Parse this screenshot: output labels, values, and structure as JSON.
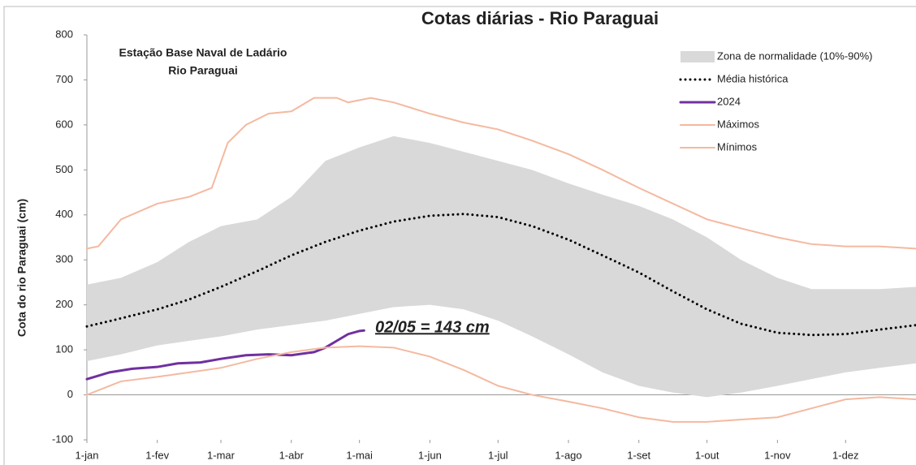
{
  "chart_data": {
    "type": "line",
    "title": "Cotas diárias - Rio Paraguai",
    "y_label": "Cota do rio Paraguai (cm)",
    "annotations": [
      "Estação Base Naval de Ladário",
      "Rio Paraguai",
      "02/05 = 143 cm"
    ],
    "xlim": [
      0,
      365
    ],
    "ylim": [
      -100,
      800
    ],
    "yticks": [
      -100,
      0,
      100,
      200,
      300,
      400,
      500,
      600,
      700,
      800
    ],
    "xticks": [
      {
        "value": 0,
        "label": "1-jan"
      },
      {
        "value": 31,
        "label": "1-fev"
      },
      {
        "value": 59,
        "label": "1-mar"
      },
      {
        "value": 90,
        "label": "1-abr"
      },
      {
        "value": 120,
        "label": "1-mai"
      },
      {
        "value": 151,
        "label": "1-jun"
      },
      {
        "value": 181,
        "label": "1-jul"
      },
      {
        "value": 212,
        "label": "1-ago"
      },
      {
        "value": 243,
        "label": "1-set"
      },
      {
        "value": 273,
        "label": "1-out"
      },
      {
        "value": 304,
        "label": "1-nov"
      },
      {
        "value": 334,
        "label": "1-dez"
      }
    ],
    "legend": "upper right",
    "series": [
      {
        "name": "Zona de normalidade (10%-90%)",
        "color": "#d9d9d9",
        "x": [
          0,
          15,
          31,
          45,
          59,
          75,
          90,
          105,
          120,
          135,
          151,
          166,
          181,
          196,
          212,
          227,
          243,
          258,
          273,
          288,
          304,
          319,
          334,
          349,
          365
        ],
        "values": [
          245,
          260,
          295,
          340,
          375,
          390,
          440,
          520,
          550,
          575,
          560,
          540,
          520,
          500,
          470,
          445,
          420,
          390,
          350,
          300,
          260,
          235,
          235,
          235,
          240
        ],
        "lower": [
          75,
          90,
          110,
          120,
          130,
          145,
          155,
          165,
          180,
          195,
          200,
          190,
          165,
          130,
          90,
          50,
          20,
          5,
          -5,
          5,
          20,
          35,
          50,
          60,
          70
        ]
      },
      {
        "name": "Média histórica",
        "color": "#000000",
        "style": "dotted",
        "x": [
          0,
          15,
          31,
          45,
          59,
          75,
          90,
          105,
          120,
          135,
          151,
          166,
          181,
          196,
          212,
          227,
          243,
          258,
          273,
          288,
          304,
          319,
          334,
          349,
          365
        ],
        "values": [
          152,
          170,
          190,
          212,
          240,
          275,
          310,
          340,
          365,
          385,
          398,
          402,
          395,
          375,
          345,
          310,
          272,
          230,
          190,
          158,
          138,
          133,
          135,
          145,
          155
        ]
      },
      {
        "name": "2024",
        "color": "#7030a0",
        "width": 3,
        "x": [
          0,
          10,
          20,
          31,
          40,
          50,
          59,
          70,
          80,
          90,
          100,
          105,
          110,
          115,
          120,
          122
        ],
        "values": [
          35,
          50,
          58,
          62,
          70,
          72,
          80,
          88,
          90,
          88,
          95,
          105,
          120,
          135,
          142,
          143
        ]
      },
      {
        "name": "Máximos",
        "color": "#f4b9a0",
        "x": [
          0,
          5,
          15,
          31,
          45,
          55,
          62,
          70,
          80,
          90,
          100,
          110,
          115,
          125,
          135,
          151,
          166,
          181,
          196,
          212,
          227,
          243,
          258,
          273,
          288,
          304,
          319,
          334,
          349,
          365
        ],
        "values": [
          325,
          330,
          390,
          425,
          440,
          460,
          560,
          600,
          625,
          630,
          660,
          660,
          650,
          660,
          650,
          625,
          605,
          590,
          565,
          535,
          500,
          460,
          425,
          390,
          370,
          350,
          335,
          330,
          330,
          325
        ]
      },
      {
        "name": "Mínimos",
        "color": "#f4b9a0",
        "x": [
          0,
          15,
          31,
          45,
          59,
          75,
          90,
          105,
          120,
          135,
          151,
          166,
          181,
          196,
          212,
          227,
          243,
          258,
          273,
          288,
          304,
          319,
          334,
          349,
          365
        ],
        "values": [
          0,
          30,
          40,
          50,
          60,
          80,
          95,
          105,
          108,
          105,
          85,
          55,
          20,
          0,
          -15,
          -30,
          -50,
          -60,
          -60,
          -55,
          -50,
          -30,
          -10,
          -5,
          -10
        ]
      }
    ]
  }
}
